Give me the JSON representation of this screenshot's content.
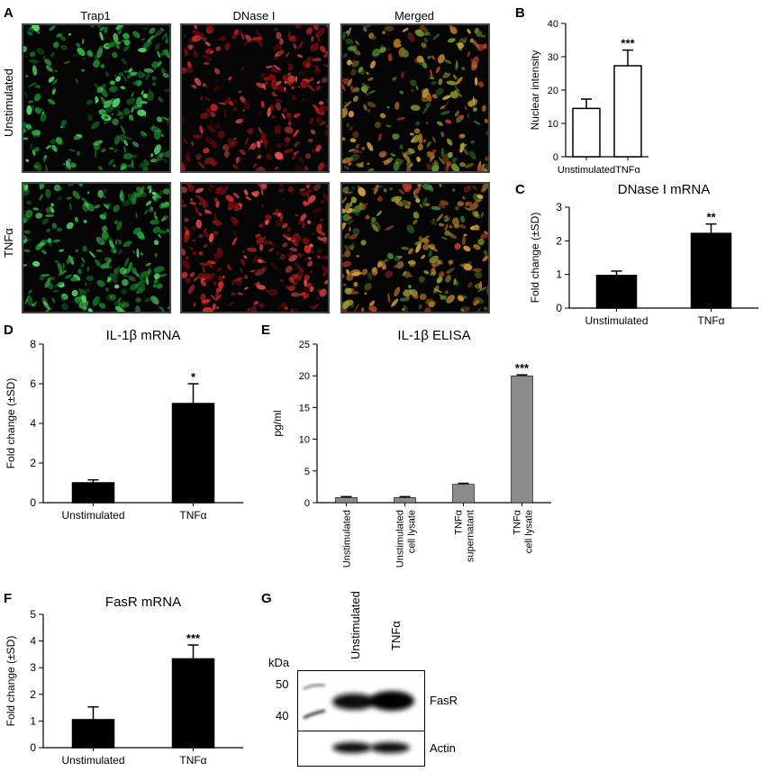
{
  "panels": {
    "A": "A",
    "B": "B",
    "C": "C",
    "D": "D",
    "E": "E",
    "F": "F",
    "G": "G"
  },
  "panel_a": {
    "columns": [
      "Trap1",
      "DNase I",
      "Merged"
    ],
    "rows": [
      "Unstimulated",
      "TNFα"
    ],
    "colors": {
      "trap1": "#2fbf4a",
      "dnase": "#d92a2a",
      "merged": "#b5a040"
    }
  },
  "panel_g": {
    "kda_label": "kDa",
    "markers": [
      "50",
      "40"
    ],
    "lanes": [
      "Unstimulated",
      "TNFα"
    ],
    "bands": [
      "FasR",
      "Actin"
    ]
  },
  "chart_data": [
    {
      "id": "B",
      "type": "bar",
      "categories": [
        "Unstimulated",
        "TNFα"
      ],
      "values": [
        14.5,
        27.3
      ],
      "errors": [
        2.8,
        4.7
      ],
      "ylabel": "Nuclear intensity",
      "title": "",
      "ylim": [
        0,
        40
      ],
      "yticks": [
        0,
        10,
        20,
        30,
        40
      ],
      "significance": [
        "",
        "***"
      ],
      "fill": "#ffffff"
    },
    {
      "id": "C",
      "type": "bar",
      "categories": [
        "Unstimulated",
        "TNFα"
      ],
      "values": [
        0.97,
        2.22
      ],
      "errors": [
        0.13,
        0.28
      ],
      "ylabel": "Fold change (±SD)",
      "title": "DNase I mRNA",
      "ylim": [
        0,
        3
      ],
      "yticks": [
        0,
        1,
        2,
        3
      ],
      "significance": [
        "",
        "**"
      ],
      "fill": "#000000"
    },
    {
      "id": "D",
      "type": "bar",
      "categories": [
        "Unstimulated",
        "TNFα"
      ],
      "values": [
        1.0,
        5.0
      ],
      "errors": [
        0.15,
        1.0
      ],
      "ylabel": "Fold change (±SD)",
      "title": "IL-1β mRNA",
      "ylim": [
        0,
        8
      ],
      "yticks": [
        0,
        2,
        4,
        6,
        8
      ],
      "significance": [
        "",
        "*"
      ],
      "fill": "#000000"
    },
    {
      "id": "E",
      "type": "bar",
      "categories": [
        "Unstimulated",
        "Unstimulated\ncell lysate",
        "TNFα\nsupernatant",
        "TNFα\ncell lysate"
      ],
      "values": [
        0.8,
        0.8,
        2.9,
        20.0
      ],
      "errors": [
        0.15,
        0.15,
        0.15,
        0.15
      ],
      "ylabel": "pg/ml",
      "title": "IL-1β ELISA",
      "ylim": [
        0,
        25
      ],
      "yticks": [
        0,
        5,
        10,
        15,
        20,
        25
      ],
      "significance": [
        "",
        "",
        "",
        "***"
      ],
      "fill": "#8c8c8c"
    },
    {
      "id": "F",
      "type": "bar",
      "categories": [
        "Unstimulated",
        "TNFα"
      ],
      "values": [
        1.05,
        3.33
      ],
      "errors": [
        0.48,
        0.52
      ],
      "ylabel": "Fold change (±SD)",
      "title": "FasR mRNA",
      "ylim": [
        0,
        5
      ],
      "yticks": [
        0,
        1,
        2,
        3,
        4,
        5
      ],
      "significance": [
        "",
        "***"
      ],
      "fill": "#000000"
    }
  ]
}
